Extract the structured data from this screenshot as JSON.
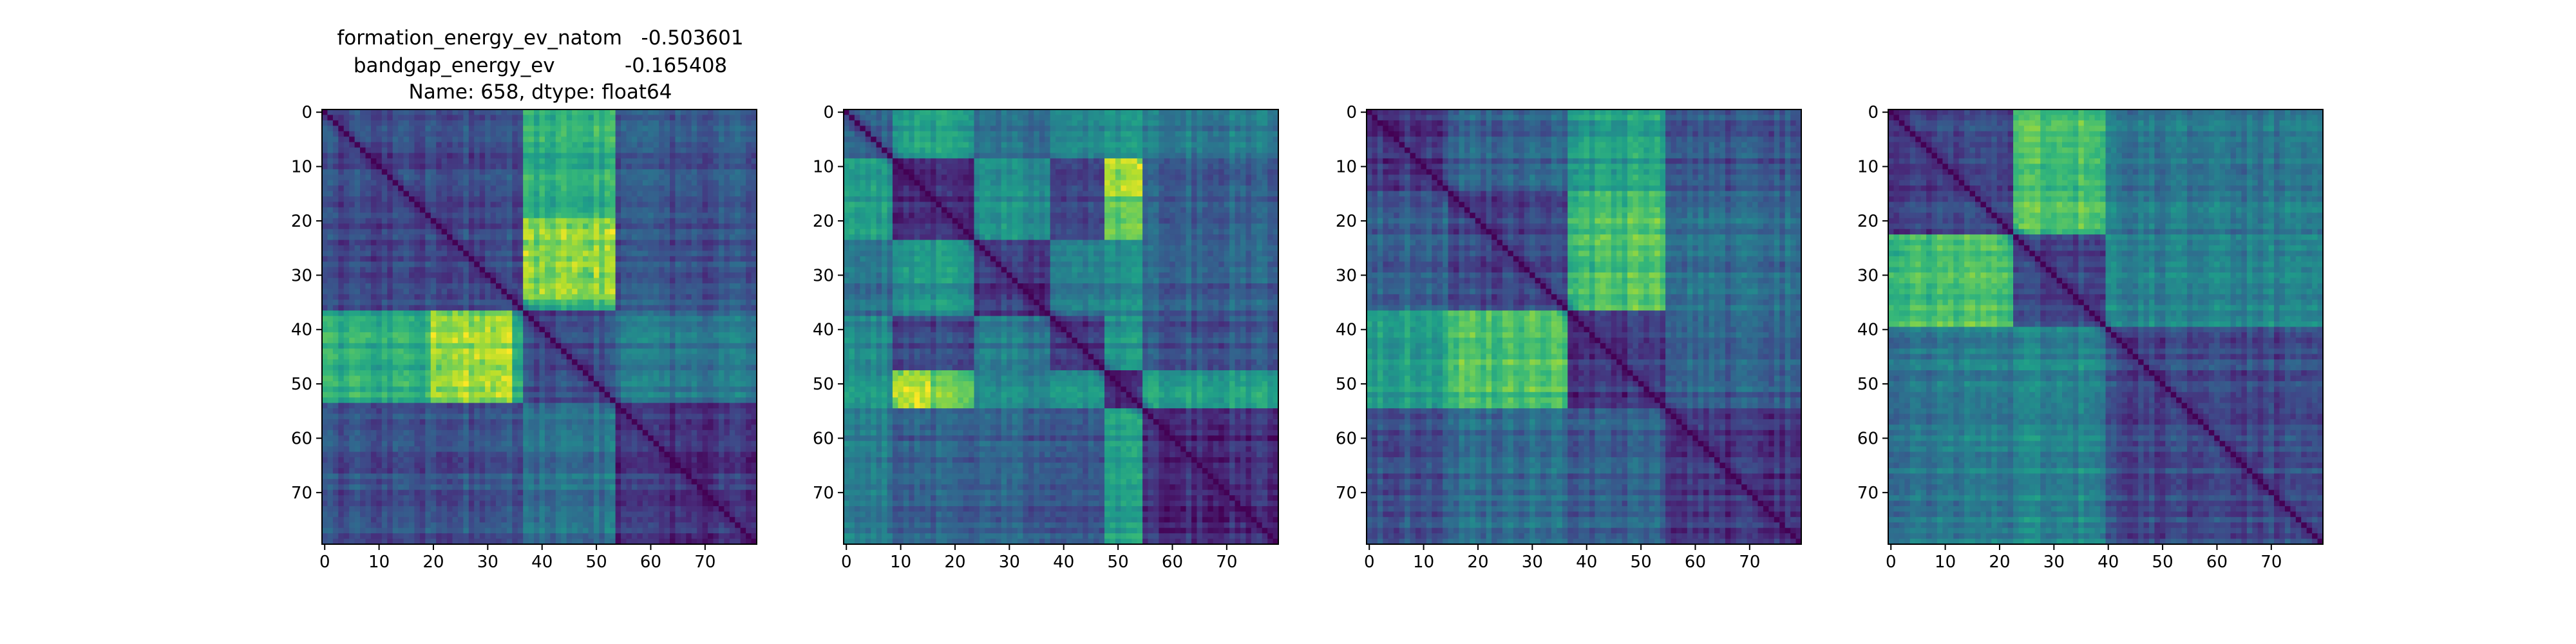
{
  "figure_title": {
    "lines": [
      "formation_energy_ev_natom   -0.503601",
      "bandgap_energy_ev           -0.165408",
      "Name: 658, dtype: float64"
    ]
  },
  "chart_data": [
    {
      "type": "heatmap",
      "colormap": "viridis",
      "n": 80,
      "xlim": [
        0,
        79
      ],
      "ylim": [
        79,
        0
      ],
      "x_ticks": [
        0,
        10,
        20,
        30,
        40,
        50,
        60,
        70
      ],
      "y_ticks": [
        0,
        10,
        20,
        30,
        40,
        50,
        60,
        70
      ],
      "diagonal": "minimum",
      "blocks": [
        0,
        37,
        54,
        80
      ],
      "block_levels": [
        [
          0.22,
          0.62,
          0.25
        ],
        [
          0.62,
          0.22,
          0.38
        ],
        [
          0.25,
          0.38,
          0.14
        ]
      ],
      "hotspots": [
        {
          "rows": [
            24,
            35
          ],
          "cols": [
            37,
            54
          ],
          "level": 0.9
        },
        {
          "rows": [
            37,
            54
          ],
          "cols": [
            20,
            35
          ],
          "level": 0.9
        }
      ]
    },
    {
      "type": "heatmap",
      "colormap": "viridis",
      "n": 80,
      "xlim": [
        0,
        79
      ],
      "ylim": [
        79,
        0
      ],
      "x_ticks": [
        0,
        10,
        20,
        30,
        40,
        50,
        60,
        70
      ],
      "y_ticks": [
        0,
        10,
        20,
        30,
        40,
        50,
        60,
        70
      ],
      "diagonal": "minimum",
      "blocks": [
        0,
        9,
        24,
        38,
        48,
        55,
        80
      ],
      "block_levels": [
        [
          0.3,
          0.55,
          0.35,
          0.45,
          0.5,
          0.4
        ],
        [
          0.55,
          0.12,
          0.5,
          0.2,
          0.75,
          0.3
        ],
        [
          0.35,
          0.5,
          0.15,
          0.4,
          0.45,
          0.3
        ],
        [
          0.45,
          0.2,
          0.4,
          0.15,
          0.5,
          0.25
        ],
        [
          0.5,
          0.75,
          0.45,
          0.5,
          0.1,
          0.55
        ],
        [
          0.4,
          0.3,
          0.3,
          0.25,
          0.55,
          0.12
        ]
      ],
      "hotspots": [
        {
          "rows": [
            10,
            16
          ],
          "cols": [
            48,
            55
          ],
          "level": 0.95
        },
        {
          "rows": [
            48,
            54
          ],
          "cols": [
            9,
            16
          ],
          "level": 0.95
        }
      ]
    },
    {
      "type": "heatmap",
      "colormap": "viridis",
      "n": 80,
      "xlim": [
        0,
        79
      ],
      "ylim": [
        79,
        0
      ],
      "x_ticks": [
        0,
        10,
        20,
        30,
        40,
        50,
        60,
        70
      ],
      "y_ticks": [
        0,
        10,
        20,
        30,
        40,
        50,
        60,
        70
      ],
      "diagonal": "minimum",
      "blocks": [
        0,
        15,
        37,
        55,
        80
      ],
      "block_levels": [
        [
          0.15,
          0.3,
          0.55,
          0.25
        ],
        [
          0.3,
          0.2,
          0.7,
          0.35
        ],
        [
          0.55,
          0.7,
          0.15,
          0.3
        ],
        [
          0.25,
          0.35,
          0.3,
          0.15
        ]
      ],
      "hotspots": []
    },
    {
      "type": "heatmap",
      "colormap": "viridis",
      "n": 80,
      "xlim": [
        0,
        79
      ],
      "ylim": [
        79,
        0
      ],
      "x_ticks": [
        0,
        10,
        20,
        30,
        40,
        50,
        60,
        70
      ],
      "y_ticks": [
        0,
        10,
        20,
        30,
        40,
        50,
        60,
        70
      ],
      "diagonal": "minimum",
      "blocks": [
        0,
        23,
        40,
        80
      ],
      "block_levels": [
        [
          0.2,
          0.7,
          0.4
        ],
        [
          0.7,
          0.2,
          0.45
        ],
        [
          0.4,
          0.45,
          0.22
        ]
      ],
      "hotspots": []
    }
  ]
}
